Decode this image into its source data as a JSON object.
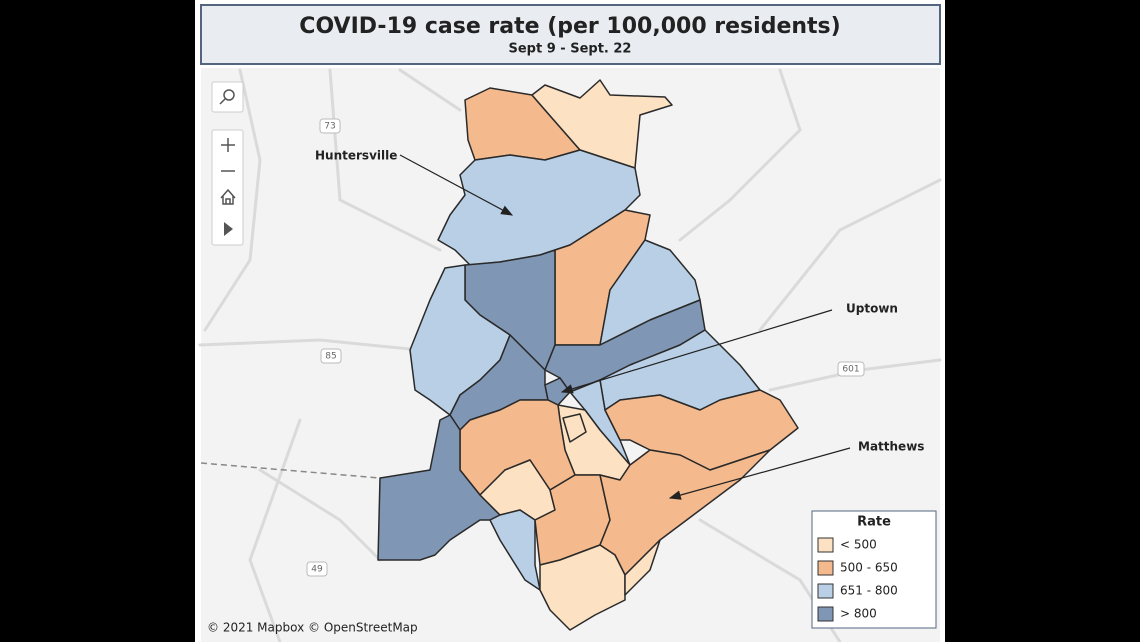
{
  "header": {
    "title": "COVID-19 case rate (per 100,000 residents)",
    "subtitle": "Sept 9 - Sept. 22"
  },
  "map": {
    "labels": [
      "Huntersville",
      "Uptown",
      "Matthews"
    ],
    "road_shields": [
      "73",
      "85",
      "601",
      "49"
    ],
    "attribution": "© 2021 Mapbox  © OpenStreetMap"
  },
  "legend": {
    "title": "Rate",
    "items": [
      {
        "label": "< 500",
        "color": "#fde1c3"
      },
      {
        "label": "500 - 650",
        "color": "#f4b98c"
      },
      {
        "label": "651 - 800",
        "color": "#b9cfe6"
      },
      {
        "label": "> 800",
        "color": "#7f96b4"
      }
    ]
  }
}
